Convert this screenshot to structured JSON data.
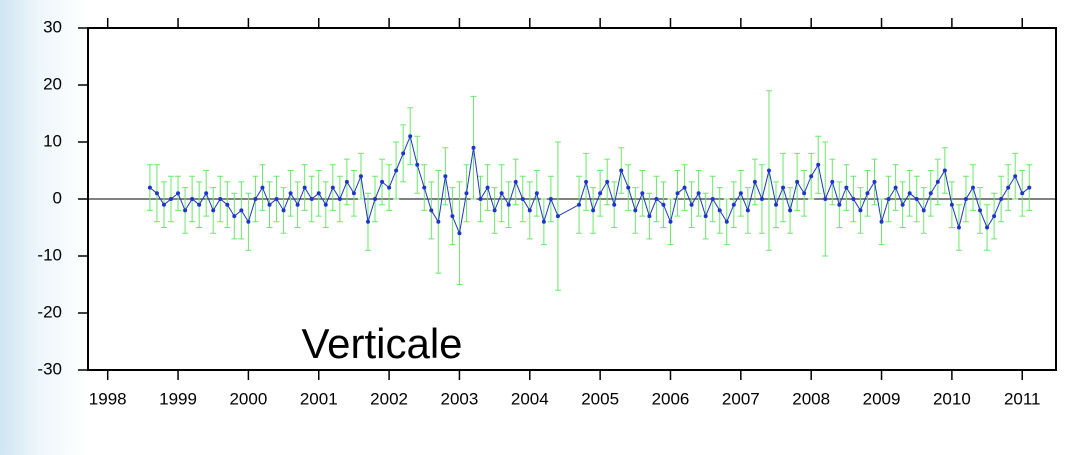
{
  "chart_data": {
    "type": "line",
    "annotation": "Verticale",
    "x": [
      1998.6,
      1998.7,
      1998.8,
      1998.9,
      1999.0,
      1999.1,
      1999.2,
      1999.3,
      1999.4,
      1999.5,
      1999.6,
      1999.7,
      1999.8,
      1999.9,
      2000.0,
      2000.1,
      2000.2,
      2000.3,
      2000.4,
      2000.5,
      2000.6,
      2000.7,
      2000.8,
      2000.9,
      2001.0,
      2001.1,
      2001.2,
      2001.3,
      2001.4,
      2001.5,
      2001.6,
      2001.7,
      2001.8,
      2001.9,
      2002.0,
      2002.1,
      2002.2,
      2002.3,
      2002.4,
      2002.5,
      2002.6,
      2002.7,
      2002.8,
      2002.9,
      2003.0,
      2003.1,
      2003.2,
      2003.3,
      2003.4,
      2003.5,
      2003.6,
      2003.7,
      2003.8,
      2003.9,
      2004.0,
      2004.1,
      2004.2,
      2004.3,
      2004.4,
      2004.7,
      2004.8,
      2004.9,
      2005.0,
      2005.1,
      2005.2,
      2005.3,
      2005.4,
      2005.5,
      2005.6,
      2005.7,
      2005.8,
      2005.9,
      2006.0,
      2006.1,
      2006.2,
      2006.3,
      2006.4,
      2006.5,
      2006.6,
      2006.7,
      2006.8,
      2006.9,
      2007.0,
      2007.1,
      2007.2,
      2007.3,
      2007.4,
      2007.5,
      2007.6,
      2007.7,
      2007.8,
      2007.9,
      2008.0,
      2008.1,
      2008.2,
      2008.3,
      2008.4,
      2008.5,
      2008.6,
      2008.7,
      2008.8,
      2008.9,
      2009.0,
      2009.1,
      2009.2,
      2009.3,
      2009.4,
      2009.5,
      2009.6,
      2009.7,
      2009.8,
      2009.9,
      2010.0,
      2010.1,
      2010.2,
      2010.3,
      2010.4,
      2010.5,
      2010.6,
      2010.7,
      2010.8,
      2010.9,
      2011.0,
      2011.1
    ],
    "series": [
      {
        "color": "#1f35c8",
        "error_color": "#6be86b",
        "values": [
          2,
          1,
          -1,
          0,
          1,
          -2,
          0,
          -1,
          1,
          -2,
          0,
          -1,
          -3,
          -2,
          -4,
          0,
          2,
          -1,
          0,
          -2,
          1,
          -1,
          2,
          0,
          1,
          -1,
          2,
          0,
          3,
          1,
          4,
          -4,
          0,
          3,
          2,
          5,
          8,
          11,
          6,
          2,
          -2,
          -4,
          4,
          -3,
          -6,
          1,
          9,
          0,
          2,
          -2,
          1,
          -1,
          3,
          0,
          -2,
          1,
          -4,
          0,
          -3,
          -1,
          3,
          -2,
          1,
          3,
          -1,
          5,
          2,
          -2,
          1,
          -3,
          0,
          -1,
          -4,
          1,
          2,
          -1,
          1,
          -3,
          0,
          -2,
          -4,
          -1,
          1,
          -2,
          3,
          0,
          5,
          -1,
          2,
          -2,
          3,
          1,
          4,
          6,
          0,
          3,
          -1,
          2,
          0,
          -2,
          1,
          3,
          -4,
          0,
          2,
          -1,
          1,
          0,
          -2,
          1,
          3,
          5,
          -1,
          -5,
          0,
          2,
          -2,
          -5,
          -3,
          0,
          2,
          4,
          1,
          2
        ],
        "errors": [
          4,
          5,
          4,
          4,
          3,
          4,
          4,
          4,
          4,
          4,
          4,
          4,
          4,
          5,
          5,
          4,
          4,
          4,
          4,
          4,
          4,
          4,
          4,
          4,
          4,
          4,
          4,
          4,
          4,
          4,
          4,
          5,
          4,
          4,
          4,
          5,
          5,
          5,
          5,
          4,
          5,
          9,
          5,
          5,
          9,
          5,
          9,
          4,
          4,
          4,
          5,
          4,
          4,
          4,
          5,
          4,
          4,
          4,
          13,
          5,
          5,
          4,
          4,
          4,
          4,
          4,
          4,
          4,
          4,
          4,
          4,
          4,
          4,
          4,
          4,
          4,
          4,
          4,
          4,
          4,
          4,
          4,
          4,
          4,
          4,
          6,
          14,
          4,
          6,
          4,
          5,
          4,
          4,
          5,
          10,
          4,
          4,
          4,
          4,
          4,
          4,
          4,
          4,
          4,
          4,
          4,
          4,
          4,
          4,
          4,
          4,
          4,
          4,
          4,
          4,
          4,
          4,
          4,
          4,
          4,
          4,
          4,
          4,
          4
        ]
      }
    ],
    "reference_line": 0,
    "xlim": [
      1997.72,
      2011.48
    ],
    "ylim": [
      -30,
      30
    ],
    "xticks": [
      1998,
      1999,
      2000,
      2001,
      2002,
      2003,
      2004,
      2005,
      2006,
      2007,
      2008,
      2009,
      2010,
      2011
    ],
    "yticks": [
      -30,
      -20,
      -10,
      0,
      10,
      20,
      30
    ]
  }
}
